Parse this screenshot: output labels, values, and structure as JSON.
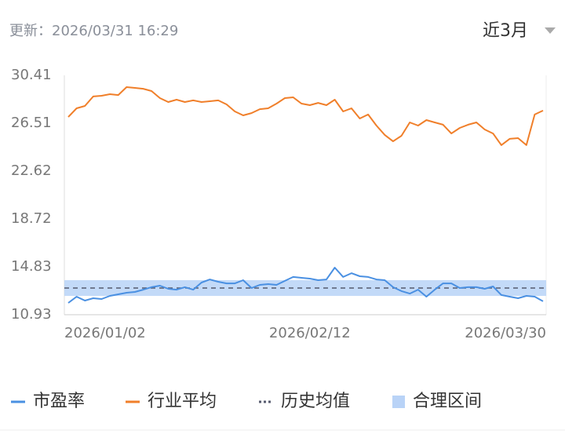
{
  "header": {
    "updated": "更新：2026/03/31 16:29",
    "range_selector": "近3月"
  },
  "chart_data": {
    "type": "line",
    "categories": [
      "2026/01/02",
      null,
      null,
      null,
      null,
      null,
      null,
      null,
      null,
      null,
      null,
      null,
      null,
      null,
      null,
      null,
      null,
      null,
      null,
      null,
      null,
      null,
      null,
      null,
      null,
      null,
      null,
      null,
      null,
      "2026/02/12",
      null,
      null,
      null,
      null,
      null,
      null,
      null,
      null,
      null,
      null,
      null,
      null,
      null,
      null,
      null,
      null,
      null,
      null,
      null,
      null,
      null,
      null,
      null,
      null,
      null,
      null,
      null,
      "2026/03/30"
    ],
    "series": [
      {
        "name": "市盈率",
        "color": "#4a90e2",
        "values": [
          11.89,
          12.4,
          12.08,
          12.27,
          12.21,
          12.46,
          12.59,
          12.72,
          12.78,
          12.97,
          13.17,
          13.29,
          13.04,
          12.97,
          13.17,
          12.97,
          13.55,
          13.8,
          13.61,
          13.48,
          13.48,
          13.74,
          13.1,
          13.36,
          13.42,
          13.36,
          13.68,
          14.0,
          13.93,
          13.87,
          13.74,
          13.8,
          14.76,
          14.0,
          14.31,
          14.06,
          14.0,
          13.8,
          13.74,
          13.17,
          12.85,
          12.65,
          12.97,
          12.4,
          12.97,
          13.48,
          13.48,
          13.1,
          13.17,
          13.17,
          13.04,
          13.23,
          12.53,
          12.4,
          12.27,
          12.46,
          12.4,
          12.02
        ]
      },
      {
        "name": "行业平均",
        "color": "#f07f2a",
        "values": [
          27.02,
          27.73,
          27.92,
          28.69,
          28.75,
          28.88,
          28.81,
          29.45,
          29.39,
          29.32,
          29.13,
          28.56,
          28.24,
          28.43,
          28.24,
          28.37,
          28.24,
          28.3,
          28.37,
          28.05,
          27.47,
          27.15,
          27.34,
          27.66,
          27.73,
          28.11,
          28.56,
          28.62,
          28.11,
          27.98,
          28.17,
          27.98,
          28.43,
          27.47,
          27.73,
          26.9,
          27.22,
          26.32,
          25.56,
          25.04,
          25.49,
          26.58,
          26.32,
          26.77,
          26.58,
          26.39,
          25.68,
          26.13,
          26.39,
          26.58,
          26.0,
          25.68,
          24.73,
          25.24,
          25.3,
          24.73,
          27.22,
          27.54
        ]
      }
    ],
    "mean": {
      "name": "历史均值",
      "value": 13.1,
      "color": "#555a6e"
    },
    "band": {
      "name": "合理区间",
      "range": [
        12.46,
        13.74
      ],
      "color": "#b9d3f7"
    },
    "ylim": [
      10.93,
      30.41
    ],
    "yticks": [
      10.93,
      14.83,
      18.72,
      22.62,
      26.51,
      30.41
    ],
    "grid": false
  }
}
